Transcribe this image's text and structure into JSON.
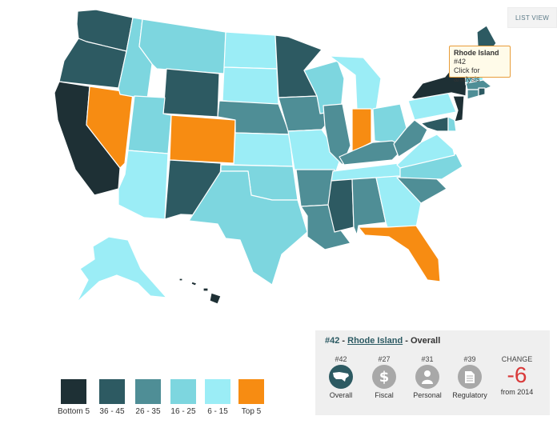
{
  "header": {
    "list_view_label": "LIST VIEW"
  },
  "colors": {
    "bottom5": "#1e3035",
    "r36_45": "#2d5a62",
    "r26_35": "#4f8e96",
    "r16_25": "#7dd6df",
    "r6_15": "#9bedf6",
    "top5": "#f78c12"
  },
  "tooltip": {
    "state": "Rhode Island",
    "rank": "#42",
    "hint": "Click for analysis"
  },
  "legend": [
    {
      "label": "Bottom 5",
      "color": "#1e3035"
    },
    {
      "label": "36 - 45",
      "color": "#2d5a62"
    },
    {
      "label": "26 - 35",
      "color": "#4f8e96"
    },
    {
      "label": "16 - 25",
      "color": "#7dd6df"
    },
    {
      "label": "6 - 15",
      "color": "#9bedf6"
    },
    {
      "label": "Top 5",
      "color": "#f78c12"
    }
  ],
  "panel": {
    "rank": "#42",
    "sep1": " - ",
    "state": "Rhode Island",
    "suffix": " - Overall",
    "metrics": [
      {
        "rank": "#42",
        "label": "Overall",
        "icon": "us-map-icon"
      },
      {
        "rank": "#27",
        "label": "Fiscal",
        "icon": "dollar-icon"
      },
      {
        "rank": "#31",
        "label": "Personal",
        "icon": "person-icon"
      },
      {
        "rank": "#39",
        "label": "Regulatory",
        "icon": "document-icon"
      }
    ],
    "change": {
      "title": "CHANGE",
      "value": "-6",
      "sub": "from 2014"
    }
  },
  "states": [
    {
      "code": "WA",
      "tier": "r36_45"
    },
    {
      "code": "OR",
      "tier": "r36_45"
    },
    {
      "code": "CA",
      "tier": "bottom5"
    },
    {
      "code": "NV",
      "tier": "top5"
    },
    {
      "code": "ID",
      "tier": "r16_25"
    },
    {
      "code": "MT",
      "tier": "r16_25"
    },
    {
      "code": "WY",
      "tier": "r36_45"
    },
    {
      "code": "UT",
      "tier": "r16_25"
    },
    {
      "code": "AZ",
      "tier": "r6_15"
    },
    {
      "code": "CO",
      "tier": "top5"
    },
    {
      "code": "NM",
      "tier": "r36_45"
    },
    {
      "code": "ND",
      "tier": "r6_15"
    },
    {
      "code": "SD",
      "tier": "r6_15"
    },
    {
      "code": "NE",
      "tier": "r26_35"
    },
    {
      "code": "KS",
      "tier": "r6_15"
    },
    {
      "code": "OK",
      "tier": "r16_25"
    },
    {
      "code": "TX",
      "tier": "r16_25"
    },
    {
      "code": "MN",
      "tier": "r36_45"
    },
    {
      "code": "IA",
      "tier": "r26_35"
    },
    {
      "code": "MO",
      "tier": "r6_15"
    },
    {
      "code": "AR",
      "tier": "r26_35"
    },
    {
      "code": "LA",
      "tier": "r26_35"
    },
    {
      "code": "WI",
      "tier": "r16_25"
    },
    {
      "code": "IL",
      "tier": "r26_35"
    },
    {
      "code": "MI",
      "tier": "r6_15"
    },
    {
      "code": "IN",
      "tier": "top5"
    },
    {
      "code": "OH",
      "tier": "r16_25"
    },
    {
      "code": "KY",
      "tier": "r26_35"
    },
    {
      "code": "TN",
      "tier": "r6_15"
    },
    {
      "code": "MS",
      "tier": "r36_45"
    },
    {
      "code": "AL",
      "tier": "r26_35"
    },
    {
      "code": "GA",
      "tier": "r6_15"
    },
    {
      "code": "FL",
      "tier": "top5"
    },
    {
      "code": "SC",
      "tier": "r26_35"
    },
    {
      "code": "NC",
      "tier": "r16_25"
    },
    {
      "code": "VA",
      "tier": "r6_15"
    },
    {
      "code": "WV",
      "tier": "r26_35"
    },
    {
      "code": "PA",
      "tier": "r6_15"
    },
    {
      "code": "NY",
      "tier": "bottom5"
    },
    {
      "code": "NJ",
      "tier": "bottom5"
    },
    {
      "code": "MD",
      "tier": "r36_45"
    },
    {
      "code": "DE",
      "tier": "r16_25"
    },
    {
      "code": "VT",
      "tier": "r16_25"
    },
    {
      "code": "NH",
      "tier": "r6_15"
    },
    {
      "code": "ME",
      "tier": "r36_45"
    },
    {
      "code": "MA",
      "tier": "r26_35"
    },
    {
      "code": "CT",
      "tier": "r26_35"
    },
    {
      "code": "RI",
      "tier": "r36_45"
    },
    {
      "code": "AK",
      "tier": "r6_15"
    },
    {
      "code": "HI",
      "tier": "bottom5"
    }
  ]
}
